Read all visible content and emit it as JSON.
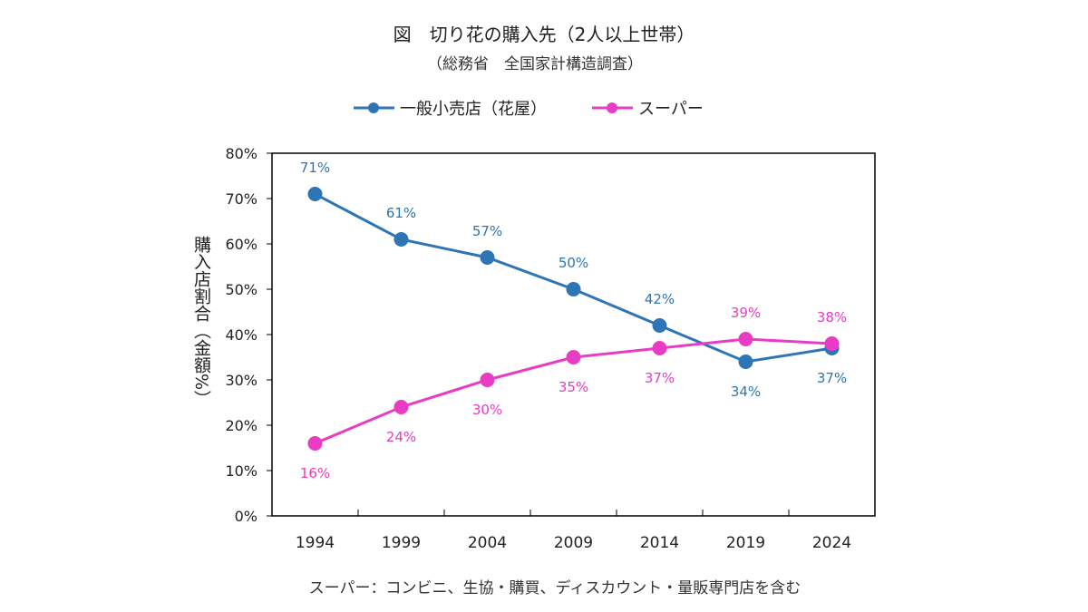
{
  "title": "図　切り花の購入先（2人以上世帯）",
  "subtitle": "（総務省　全国家計構造調査）",
  "footnote": "スーパー：コンビニ、生協・購買、ディスカウント・量販専門店を含む",
  "colors": {
    "series1": "#2E75B6",
    "series2": "#E83CC4",
    "axis": "#000000",
    "text": "#222222"
  },
  "chart_data": {
    "type": "line",
    "title": "図　切り花の購入先（2人以上世帯）",
    "subtitle": "（総務省　全国家計構造調査）",
    "categories": [
      "1994",
      "1999",
      "2004",
      "2009",
      "2014",
      "2019",
      "2024"
    ],
    "ylabel": "購入店割合（金額%）",
    "xlabel": "",
    "ylim": [
      0,
      80
    ],
    "yticks": [
      "0%",
      "10%",
      "20%",
      "30%",
      "40%",
      "50%",
      "60%",
      "70%",
      "80%"
    ],
    "grid": false,
    "legend_position": "top",
    "series": [
      {
        "name": "一般小売店（花屋）",
        "color": "#2E75B6",
        "values": [
          71,
          61,
          57,
          50,
          42,
          34,
          37
        ],
        "labels": [
          "71%",
          "61%",
          "57%",
          "50%",
          "42%",
          "34%",
          "37%"
        ]
      },
      {
        "name": "スーパー",
        "color": "#E83CC4",
        "values": [
          16,
          24,
          30,
          35,
          37,
          39,
          38
        ],
        "labels": [
          "16%",
          "24%",
          "30%",
          "35%",
          "37%",
          "39%",
          "38%"
        ]
      }
    ]
  }
}
